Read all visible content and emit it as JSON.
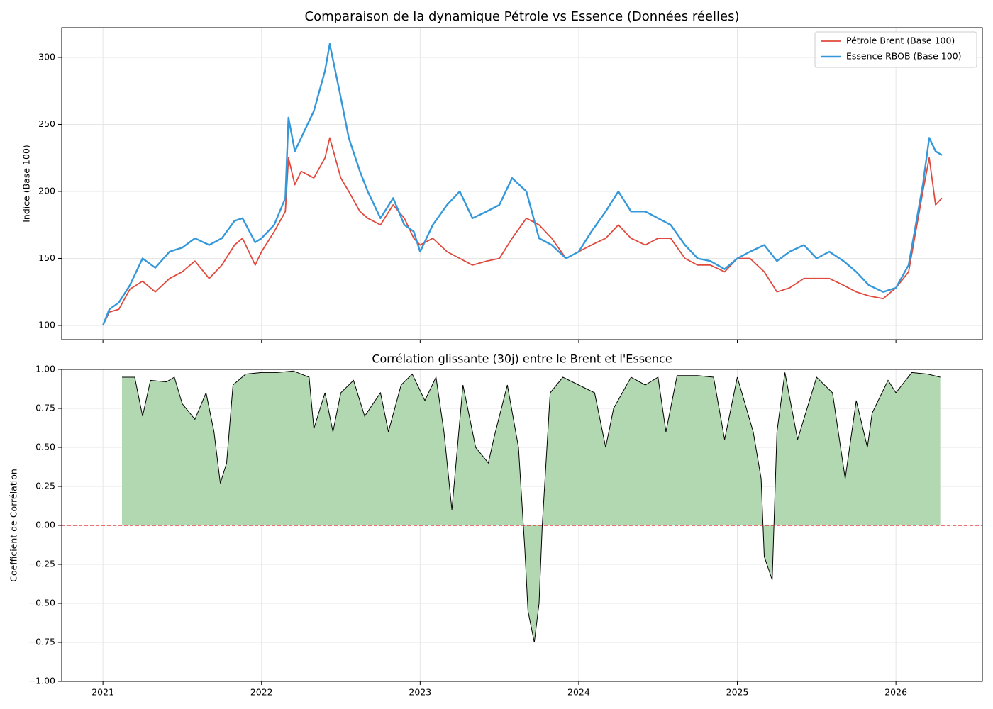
{
  "chart_data": [
    {
      "type": "line",
      "title": "Comparaison de la dynamique Pétrole vs Essence (Données réelles)",
      "ylabel": "Indice (Base 100)",
      "x": [
        2021.0,
        2021.04,
        2021.1,
        2021.17,
        2021.25,
        2021.33,
        2021.42,
        2021.5,
        2021.58,
        2021.67,
        2021.75,
        2021.83,
        2021.88,
        2021.96,
        2022.0,
        2022.08,
        2022.15,
        2022.17,
        2022.21,
        2022.25,
        2022.33,
        2022.4,
        2022.43,
        2022.5,
        2022.55,
        2022.62,
        2022.67,
        2022.75,
        2022.83,
        2022.9,
        2022.96,
        2023.0,
        2023.08,
        2023.17,
        2023.25,
        2023.33,
        2023.42,
        2023.5,
        2023.58,
        2023.67,
        2023.75,
        2023.83,
        2023.92,
        2024.0,
        2024.08,
        2024.17,
        2024.25,
        2024.33,
        2024.42,
        2024.5,
        2024.58,
        2024.67,
        2024.75,
        2024.83,
        2024.92,
        2025.0,
        2025.08,
        2025.17,
        2025.25,
        2025.33,
        2025.42,
        2025.5,
        2025.58,
        2025.67,
        2025.75,
        2025.83,
        2025.92,
        2026.0,
        2026.08,
        2026.17,
        2026.21,
        2026.25,
        2026.29
      ],
      "series": [
        {
          "name": "Pétrole Brent (Base 100)",
          "color": "#e0493c",
          "width": 1.8,
          "values": [
            100,
            110,
            112,
            127,
            133,
            125,
            135,
            140,
            148,
            135,
            145,
            160,
            165,
            145,
            155,
            170,
            185,
            225,
            205,
            215,
            210,
            225,
            240,
            210,
            200,
            185,
            180,
            175,
            190,
            180,
            165,
            160,
            165,
            155,
            150,
            145,
            148,
            150,
            165,
            180,
            175,
            165,
            150,
            155,
            160,
            165,
            175,
            165,
            160,
            165,
            165,
            150,
            145,
            145,
            140,
            150,
            150,
            140,
            125,
            128,
            135,
            135,
            135,
            130,
            125,
            122,
            120,
            128,
            140,
            200,
            225,
            190,
            195
          ]
        },
        {
          "name": "Essence RBOB (Base 100)",
          "color": "#3498db",
          "width": 2.4,
          "values": [
            100,
            112,
            117,
            130,
            150,
            143,
            155,
            158,
            165,
            160,
            165,
            178,
            180,
            162,
            165,
            175,
            195,
            255,
            230,
            240,
            260,
            290,
            310,
            270,
            240,
            215,
            200,
            180,
            195,
            175,
            170,
            155,
            175,
            190,
            200,
            180,
            185,
            190,
            210,
            200,
            165,
            160,
            150,
            155,
            170,
            185,
            200,
            185,
            185,
            180,
            175,
            160,
            150,
            148,
            142,
            150,
            155,
            160,
            148,
            155,
            160,
            150,
            155,
            148,
            140,
            130,
            125,
            128,
            145,
            205,
            240,
            230,
            227
          ]
        }
      ],
      "xlim": [
        2020.74,
        2026.545
      ],
      "xticks": [
        2021,
        2022,
        2023,
        2024,
        2025,
        2026
      ],
      "ylim": [
        89.4,
        322.2
      ],
      "yticks": [
        100,
        150,
        200,
        250,
        300
      ],
      "grid": true,
      "legend": "upper right"
    },
    {
      "type": "area",
      "title": "Corrélation glissante (30j) entre le Brent et l'Essence",
      "ylabel": "Coefficient de Corrélation",
      "x": [
        2021.12,
        2021.2,
        2021.25,
        2021.3,
        2021.4,
        2021.45,
        2021.5,
        2021.58,
        2021.65,
        2021.7,
        2021.74,
        2021.78,
        2021.82,
        2021.9,
        2022.0,
        2022.1,
        2022.2,
        2022.3,
        2022.33,
        2022.4,
        2022.45,
        2022.5,
        2022.58,
        2022.65,
        2022.75,
        2022.8,
        2022.88,
        2022.95,
        2023.03,
        2023.1,
        2023.15,
        2023.2,
        2023.27,
        2023.35,
        2023.43,
        2023.47,
        2023.55,
        2023.62,
        2023.66,
        2023.68,
        2023.72,
        2023.75,
        2023.77,
        2023.82,
        2023.9,
        2024.0,
        2024.1,
        2024.17,
        2024.22,
        2024.33,
        2024.42,
        2024.5,
        2024.55,
        2024.62,
        2024.75,
        2024.85,
        2024.92,
        2025.0,
        2025.1,
        2025.15,
        2025.17,
        2025.22,
        2025.25,
        2025.3,
        2025.38,
        2025.5,
        2025.6,
        2025.68,
        2025.75,
        2025.82,
        2025.85,
        2025.95,
        2026.0,
        2026.1,
        2026.2,
        2026.28
      ],
      "values": [
        0.95,
        0.95,
        0.7,
        0.93,
        0.92,
        0.95,
        0.78,
        0.68,
        0.85,
        0.6,
        0.27,
        0.4,
        0.9,
        0.97,
        0.98,
        0.98,
        0.99,
        0.95,
        0.62,
        0.85,
        0.6,
        0.85,
        0.93,
        0.7,
        0.85,
        0.6,
        0.9,
        0.97,
        0.8,
        0.95,
        0.6,
        0.1,
        0.9,
        0.5,
        0.4,
        0.58,
        0.9,
        0.5,
        -0.15,
        -0.55,
        -0.75,
        -0.5,
        0.0,
        0.85,
        0.95,
        0.9,
        0.85,
        0.5,
        0.75,
        0.95,
        0.9,
        0.95,
        0.6,
        0.96,
        0.96,
        0.95,
        0.55,
        0.95,
        0.6,
        0.3,
        -0.2,
        -0.35,
        0.6,
        0.98,
        0.55,
        0.95,
        0.85,
        0.3,
        0.8,
        0.5,
        0.72,
        0.93,
        0.85,
        0.98,
        0.97,
        0.95
      ],
      "color": "#000000",
      "fill": "#b2d8b2",
      "hline": {
        "value": 0,
        "color": "#e02020"
      },
      "xlim": [
        2020.74,
        2026.545
      ],
      "xticks": [
        2021,
        2022,
        2023,
        2024,
        2025,
        2026
      ],
      "ylim": [
        -1,
        1
      ],
      "yticks": [
        {
          "value": -1,
          "label": "−1.00"
        },
        {
          "value": -0.75,
          "label": "−0.75"
        },
        {
          "value": -0.5,
          "label": "−0.50"
        },
        {
          "value": -0.25,
          "label": "−0.25"
        },
        {
          "value": 0,
          "label": "0.00"
        },
        {
          "value": 0.25,
          "label": "0.25"
        },
        {
          "value": 0.5,
          "label": "0.50"
        },
        {
          "value": 0.75,
          "label": "0.75"
        },
        {
          "value": 1,
          "label": "1.00"
        }
      ],
      "grid": true
    }
  ]
}
